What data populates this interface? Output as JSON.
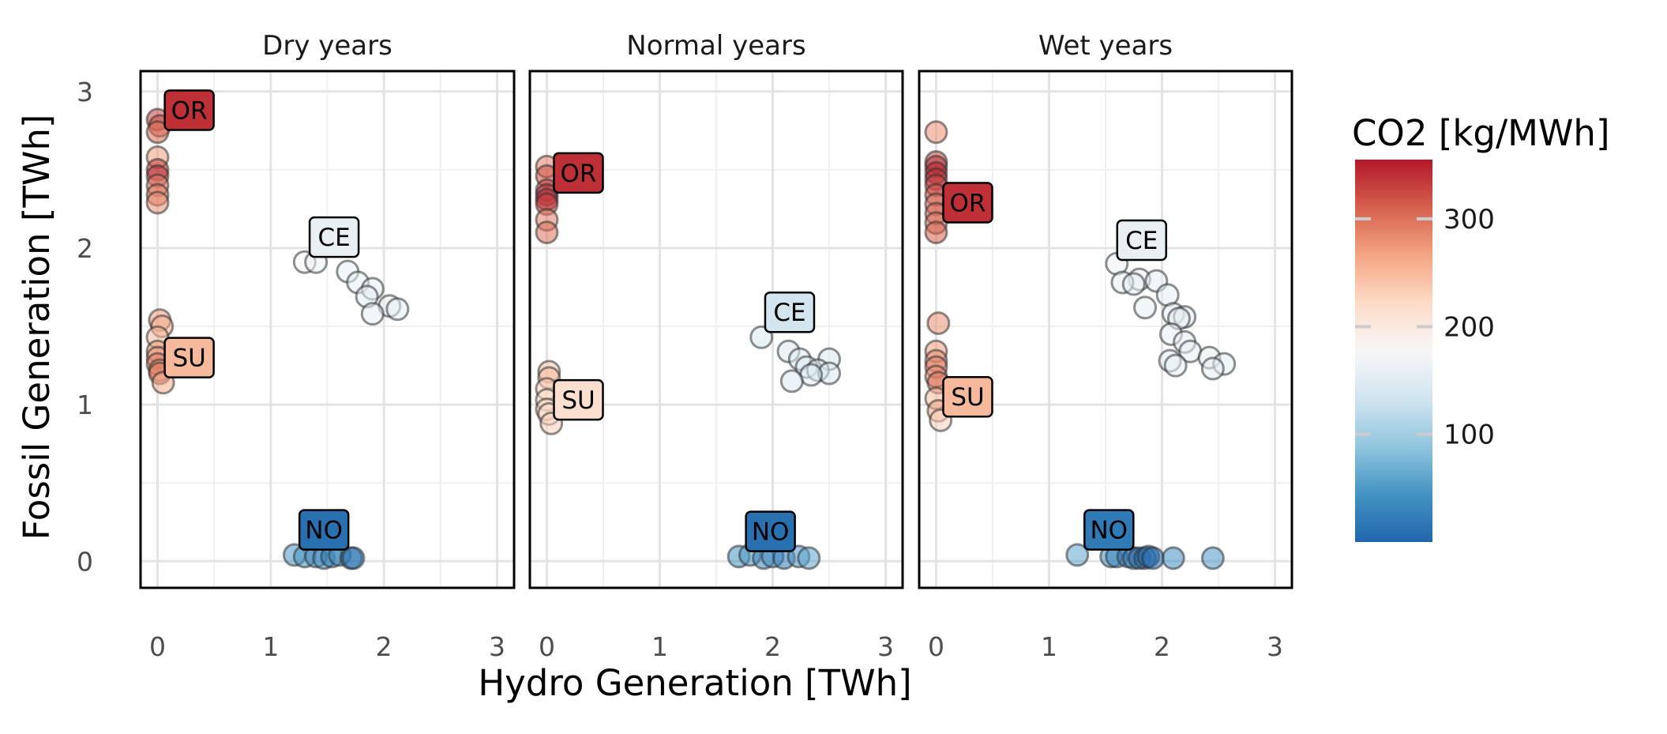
{
  "chart_data": {
    "type": "scatter",
    "facets": [
      "Dry years",
      "Normal years",
      "Wet years"
    ],
    "xlabel": "Hydro Generation [TWh]",
    "ylabel": "Fossil Generation [TWh]",
    "xlim": [
      -0.15,
      3.15
    ],
    "ylim": [
      -0.17,
      3.13
    ],
    "xticks": [
      0,
      1,
      2,
      3
    ],
    "yticks": [
      0,
      1,
      2,
      3
    ],
    "grid": true,
    "legend": {
      "title": "CO2 [kg/MWh]",
      "placement": "right",
      "type": "colorbar",
      "range": [
        0,
        355
      ],
      "ticks": [
        100,
        200,
        300
      ],
      "colors": [
        "#2166ac",
        "#4393c3",
        "#92c5de",
        "#d1e5f0",
        "#f7f7f7",
        "#fddbc7",
        "#f4a582",
        "#d6604d",
        "#b2182b"
      ]
    },
    "panels": [
      {
        "facet": "Dry years",
        "labels": [
          {
            "text": "OR",
            "x": 0.28,
            "y": 2.88,
            "co2": 340
          },
          {
            "text": "CE",
            "x": 1.56,
            "y": 2.07,
            "co2": 160
          },
          {
            "text": "SU",
            "x": 0.28,
            "y": 1.3,
            "co2": 250
          },
          {
            "text": "NO",
            "x": 1.47,
            "y": 0.2,
            "co2": 10
          }
        ],
        "points": [
          {
            "x": 0.0,
            "y": 2.82,
            "co2": 330
          },
          {
            "x": 0.02,
            "y": 2.78,
            "co2": 320
          },
          {
            "x": 0.0,
            "y": 2.74,
            "co2": 300
          },
          {
            "x": 0.0,
            "y": 2.58,
            "co2": 270
          },
          {
            "x": 0.0,
            "y": 2.5,
            "co2": 330
          },
          {
            "x": 0.0,
            "y": 2.46,
            "co2": 340
          },
          {
            "x": 0.0,
            "y": 2.4,
            "co2": 290
          },
          {
            "x": 0.0,
            "y": 2.34,
            "co2": 300
          },
          {
            "x": 0.0,
            "y": 2.29,
            "co2": 280
          },
          {
            "x": 1.3,
            "y": 1.91,
            "co2": 170
          },
          {
            "x": 1.4,
            "y": 1.91,
            "co2": 165
          },
          {
            "x": 1.68,
            "y": 1.85,
            "co2": 160
          },
          {
            "x": 1.77,
            "y": 1.78,
            "co2": 160
          },
          {
            "x": 1.9,
            "y": 1.74,
            "co2": 158
          },
          {
            "x": 1.85,
            "y": 1.69,
            "co2": 158
          },
          {
            "x": 2.05,
            "y": 1.63,
            "co2": 158
          },
          {
            "x": 2.12,
            "y": 1.61,
            "co2": 158
          },
          {
            "x": 1.9,
            "y": 1.58,
            "co2": 158
          },
          {
            "x": 0.02,
            "y": 1.54,
            "co2": 270
          },
          {
            "x": 0.04,
            "y": 1.5,
            "co2": 260
          },
          {
            "x": 0.0,
            "y": 1.43,
            "co2": 250
          },
          {
            "x": 0.0,
            "y": 1.34,
            "co2": 270
          },
          {
            "x": 0.0,
            "y": 1.3,
            "co2": 280
          },
          {
            "x": 0.0,
            "y": 1.26,
            "co2": 290
          },
          {
            "x": 0.02,
            "y": 1.22,
            "co2": 270
          },
          {
            "x": 0.02,
            "y": 1.2,
            "co2": 300
          },
          {
            "x": 0.05,
            "y": 1.14,
            "co2": 260
          },
          {
            "x": 1.21,
            "y": 0.04,
            "co2": 50
          },
          {
            "x": 1.3,
            "y": 0.03,
            "co2": 45
          },
          {
            "x": 1.4,
            "y": 0.03,
            "co2": 30
          },
          {
            "x": 1.47,
            "y": 0.02,
            "co2": 40
          },
          {
            "x": 1.54,
            "y": 0.03,
            "co2": 20
          },
          {
            "x": 1.61,
            "y": 0.04,
            "co2": 40
          },
          {
            "x": 1.71,
            "y": 0.02,
            "co2": 10
          },
          {
            "x": 1.73,
            "y": 0.02,
            "co2": 20
          }
        ]
      },
      {
        "facet": "Normal years",
        "labels": [
          {
            "text": "OR",
            "x": 0.28,
            "y": 2.48,
            "co2": 340
          },
          {
            "text": "CE",
            "x": 2.15,
            "y": 1.59,
            "co2": 135
          },
          {
            "text": "SU",
            "x": 0.28,
            "y": 1.03,
            "co2": 215
          },
          {
            "text": "NO",
            "x": 1.98,
            "y": 0.19,
            "co2": 10
          }
        ],
        "points": [
          {
            "x": 0.0,
            "y": 2.52,
            "co2": 290
          },
          {
            "x": 0.0,
            "y": 2.46,
            "co2": 320
          },
          {
            "x": 0.0,
            "y": 2.37,
            "co2": 330
          },
          {
            "x": 0.0,
            "y": 2.34,
            "co2": 340
          },
          {
            "x": 0.0,
            "y": 2.31,
            "co2": 350
          },
          {
            "x": 0.0,
            "y": 2.28,
            "co2": 330
          },
          {
            "x": 0.0,
            "y": 2.18,
            "co2": 290
          },
          {
            "x": 0.0,
            "y": 2.1,
            "co2": 300
          },
          {
            "x": 1.9,
            "y": 1.43,
            "co2": 140
          },
          {
            "x": 2.14,
            "y": 1.34,
            "co2": 145
          },
          {
            "x": 2.24,
            "y": 1.29,
            "co2": 150
          },
          {
            "x": 2.5,
            "y": 1.29,
            "co2": 140
          },
          {
            "x": 2.3,
            "y": 1.24,
            "co2": 145
          },
          {
            "x": 2.4,
            "y": 1.22,
            "co2": 145
          },
          {
            "x": 2.5,
            "y": 1.2,
            "co2": 145
          },
          {
            "x": 2.34,
            "y": 1.19,
            "co2": 150
          },
          {
            "x": 2.17,
            "y": 1.15,
            "co2": 145
          },
          {
            "x": 0.02,
            "y": 1.21,
            "co2": 240
          },
          {
            "x": 0.02,
            "y": 1.17,
            "co2": 250
          },
          {
            "x": 0.0,
            "y": 1.1,
            "co2": 230
          },
          {
            "x": 0.0,
            "y": 1.03,
            "co2": 220
          },
          {
            "x": 0.0,
            "y": 0.97,
            "co2": 230
          },
          {
            "x": 0.02,
            "y": 0.94,
            "co2": 220
          },
          {
            "x": 0.04,
            "y": 0.88,
            "co2": 230
          },
          {
            "x": 1.7,
            "y": 0.03,
            "co2": 45
          },
          {
            "x": 1.8,
            "y": 0.04,
            "co2": 50
          },
          {
            "x": 1.92,
            "y": 0.02,
            "co2": 30
          },
          {
            "x": 2.0,
            "y": 0.03,
            "co2": 40
          },
          {
            "x": 2.1,
            "y": 0.02,
            "co2": 20
          },
          {
            "x": 2.23,
            "y": 0.03,
            "co2": 50
          },
          {
            "x": 2.32,
            "y": 0.02,
            "co2": 60
          }
        ]
      },
      {
        "facet": "Wet years",
        "labels": [
          {
            "text": "OR",
            "x": 0.28,
            "y": 2.29,
            "co2": 340
          },
          {
            "text": "CE",
            "x": 1.82,
            "y": 2.05,
            "co2": 160
          },
          {
            "text": "SU",
            "x": 0.28,
            "y": 1.05,
            "co2": 250
          },
          {
            "text": "NO",
            "x": 1.53,
            "y": 0.2,
            "co2": 20
          }
        ],
        "points": [
          {
            "x": 0.0,
            "y": 2.74,
            "co2": 280
          },
          {
            "x": 0.0,
            "y": 2.55,
            "co2": 320
          },
          {
            "x": 0.0,
            "y": 2.52,
            "co2": 340
          },
          {
            "x": 0.0,
            "y": 2.48,
            "co2": 350
          },
          {
            "x": 0.0,
            "y": 2.44,
            "co2": 340
          },
          {
            "x": 0.0,
            "y": 2.4,
            "co2": 330
          },
          {
            "x": 0.0,
            "y": 2.34,
            "co2": 320
          },
          {
            "x": 0.0,
            "y": 2.28,
            "co2": 300
          },
          {
            "x": 0.0,
            "y": 2.22,
            "co2": 310
          },
          {
            "x": 0.0,
            "y": 2.16,
            "co2": 300
          },
          {
            "x": 0.0,
            "y": 2.1,
            "co2": 310
          },
          {
            "x": 1.6,
            "y": 1.9,
            "co2": 165
          },
          {
            "x": 1.8,
            "y": 1.8,
            "co2": 162
          },
          {
            "x": 1.65,
            "y": 1.78,
            "co2": 160
          },
          {
            "x": 1.75,
            "y": 1.77,
            "co2": 160
          },
          {
            "x": 1.95,
            "y": 1.79,
            "co2": 158
          },
          {
            "x": 2.05,
            "y": 1.7,
            "co2": 158
          },
          {
            "x": 1.85,
            "y": 1.62,
            "co2": 158
          },
          {
            "x": 2.1,
            "y": 1.58,
            "co2": 158
          },
          {
            "x": 2.2,
            "y": 1.56,
            "co2": 158
          },
          {
            "x": 2.15,
            "y": 1.55,
            "co2": 158
          },
          {
            "x": 2.08,
            "y": 1.45,
            "co2": 158
          },
          {
            "x": 2.2,
            "y": 1.4,
            "co2": 158
          },
          {
            "x": 2.25,
            "y": 1.34,
            "co2": 158
          },
          {
            "x": 2.42,
            "y": 1.3,
            "co2": 158
          },
          {
            "x": 2.55,
            "y": 1.26,
            "co2": 158
          },
          {
            "x": 2.07,
            "y": 1.28,
            "co2": 158
          },
          {
            "x": 2.12,
            "y": 1.25,
            "co2": 158
          },
          {
            "x": 2.45,
            "y": 1.23,
            "co2": 158
          },
          {
            "x": 0.02,
            "y": 1.52,
            "co2": 280
          },
          {
            "x": 0.0,
            "y": 1.34,
            "co2": 270
          },
          {
            "x": 0.0,
            "y": 1.28,
            "co2": 280
          },
          {
            "x": 0.0,
            "y": 1.24,
            "co2": 290
          },
          {
            "x": 0.0,
            "y": 1.18,
            "co2": 280
          },
          {
            "x": 0.02,
            "y": 1.14,
            "co2": 300
          },
          {
            "x": 0.0,
            "y": 1.04,
            "co2": 250
          },
          {
            "x": 0.02,
            "y": 0.96,
            "co2": 260
          },
          {
            "x": 0.04,
            "y": 0.9,
            "co2": 230
          },
          {
            "x": 1.25,
            "y": 0.04,
            "co2": 60
          },
          {
            "x": 1.55,
            "y": 0.03,
            "co2": 40
          },
          {
            "x": 1.6,
            "y": 0.03,
            "co2": 30
          },
          {
            "x": 1.7,
            "y": 0.03,
            "co2": 20
          },
          {
            "x": 1.75,
            "y": 0.02,
            "co2": 20
          },
          {
            "x": 1.8,
            "y": 0.02,
            "co2": 10
          },
          {
            "x": 1.85,
            "y": 0.02,
            "co2": 10
          },
          {
            "x": 1.88,
            "y": 0.03,
            "co2": 0
          },
          {
            "x": 1.92,
            "y": 0.02,
            "co2": 10
          },
          {
            "x": 2.1,
            "y": 0.02,
            "co2": 40
          },
          {
            "x": 2.45,
            "y": 0.02,
            "co2": 50
          }
        ]
      }
    ]
  }
}
